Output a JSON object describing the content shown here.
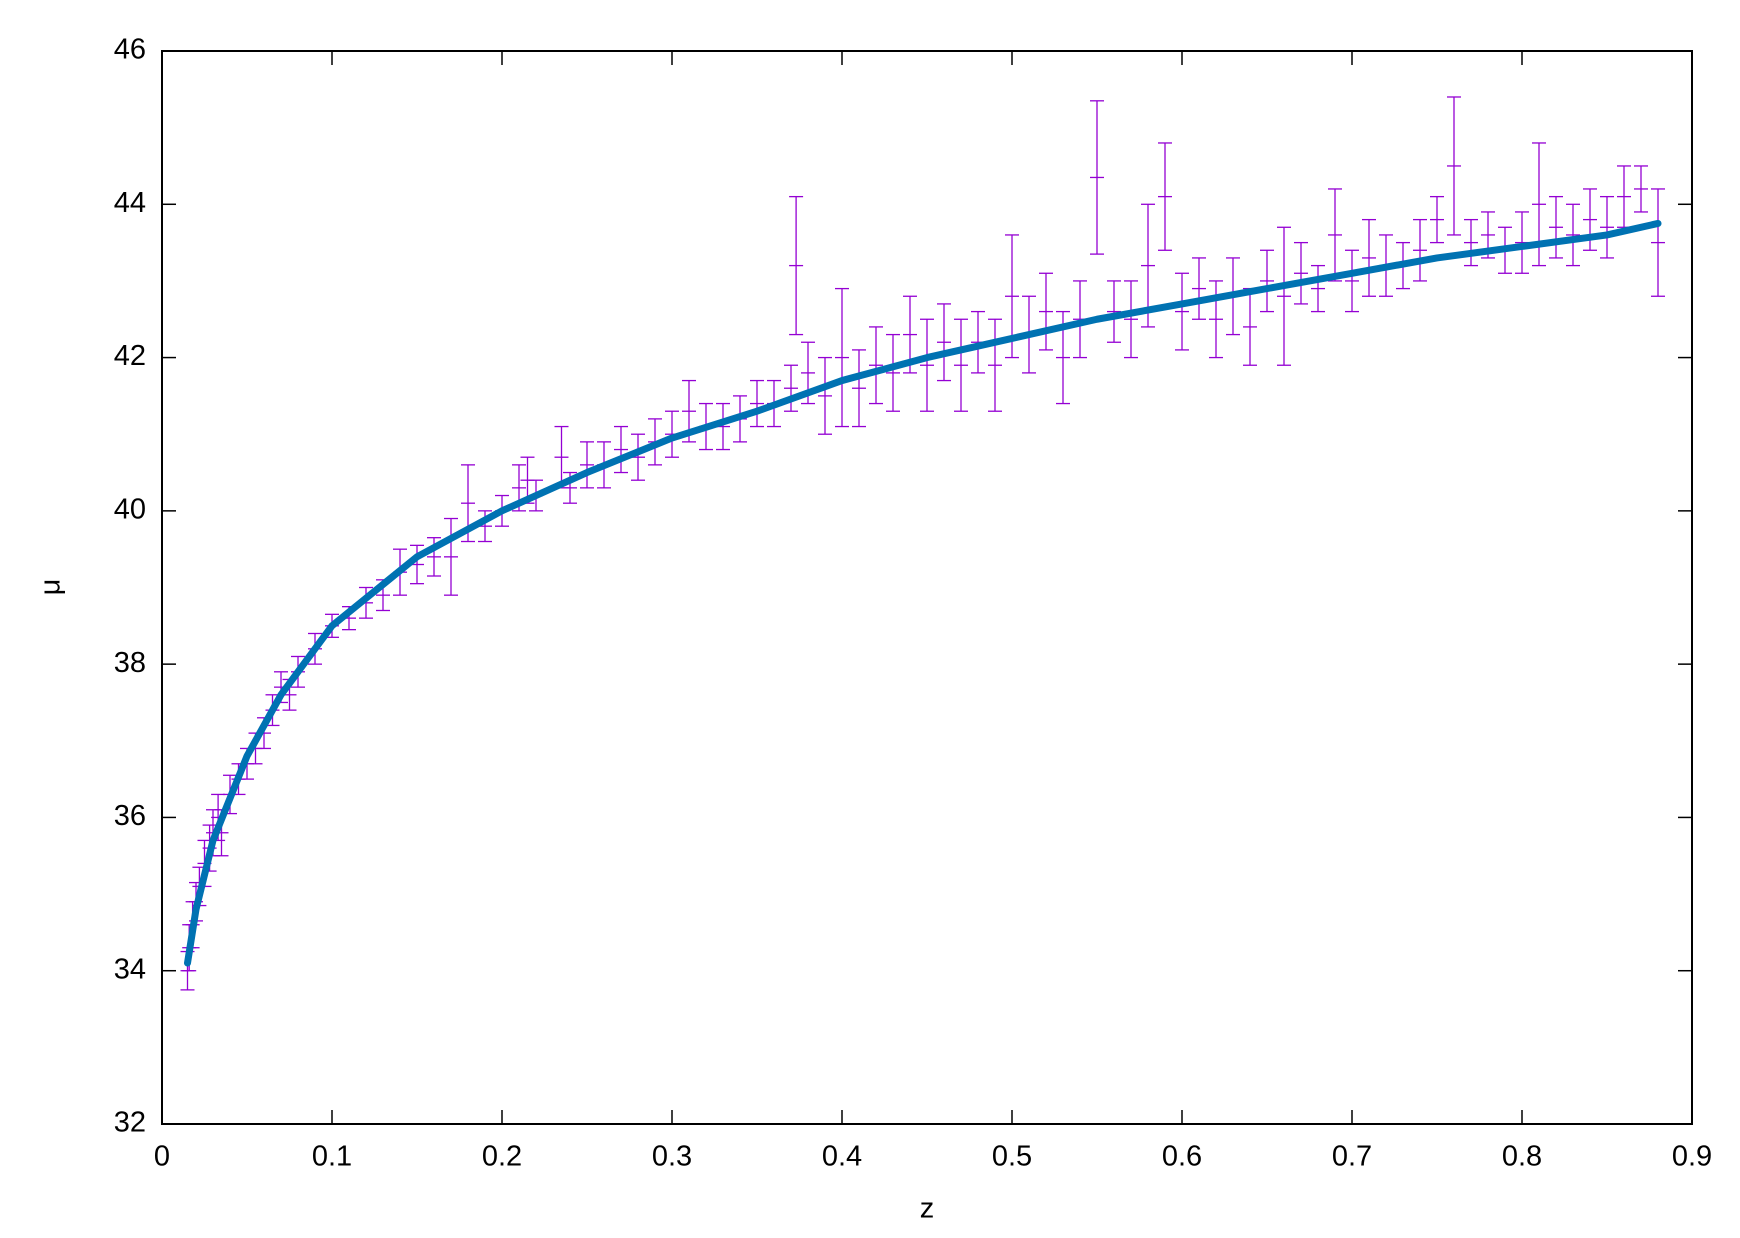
{
  "chart_data": {
    "type": "scatter",
    "x_label": "z",
    "y_label": "μ",
    "xlim": [
      0,
      0.9
    ],
    "xticks": [
      0,
      0.1,
      0.2,
      0.3,
      0.4,
      0.5,
      0.6,
      0.7,
      0.8,
      0.9
    ],
    "ylim": [
      32,
      46
    ],
    "yticks": [
      32,
      34,
      36,
      38,
      40,
      42,
      44,
      46
    ],
    "series": [
      {
        "type": "errorbar",
        "color": "#9400d3",
        "x": [
          0.015,
          0.016,
          0.018,
          0.02,
          0.022,
          0.025,
          0.028,
          0.03,
          0.033,
          0.035,
          0.04,
          0.045,
          0.05,
          0.055,
          0.06,
          0.065,
          0.07,
          0.075,
          0.08,
          0.09,
          0.1,
          0.11,
          0.12,
          0.13,
          0.14,
          0.15,
          0.16,
          0.17,
          0.18,
          0.19,
          0.2,
          0.21,
          0.215,
          0.22,
          0.235,
          0.24,
          0.25,
          0.26,
          0.27,
          0.28,
          0.29,
          0.3,
          0.31,
          0.32,
          0.33,
          0.34,
          0.35,
          0.36,
          0.37,
          0.373,
          0.38,
          0.39,
          0.4,
          0.41,
          0.42,
          0.43,
          0.44,
          0.45,
          0.46,
          0.47,
          0.48,
          0.49,
          0.5,
          0.51,
          0.52,
          0.53,
          0.54,
          0.55,
          0.56,
          0.57,
          0.58,
          0.59,
          0.6,
          0.61,
          0.62,
          0.63,
          0.64,
          0.65,
          0.66,
          0.67,
          0.68,
          0.69,
          0.7,
          0.71,
          0.72,
          0.73,
          0.74,
          0.75,
          0.76,
          0.77,
          0.78,
          0.79,
          0.8,
          0.81,
          0.82,
          0.83,
          0.84,
          0.85,
          0.86,
          0.87,
          0.88
        ],
        "values": [
          34.0,
          34.3,
          34.6,
          34.9,
          35.1,
          35.4,
          35.6,
          35.8,
          36.0,
          35.8,
          36.3,
          36.5,
          36.7,
          36.9,
          37.1,
          37.4,
          37.7,
          37.6,
          37.9,
          38.2,
          38.5,
          38.6,
          38.8,
          38.9,
          39.2,
          39.3,
          39.4,
          39.4,
          40.1,
          39.8,
          40.0,
          40.3,
          40.4,
          40.2,
          40.7,
          40.3,
          40.6,
          40.6,
          40.8,
          40.7,
          40.9,
          41.0,
          41.3,
          41.1,
          41.1,
          41.2,
          41.4,
          41.4,
          41.6,
          43.2,
          41.8,
          41.5,
          42.0,
          41.6,
          41.9,
          41.8,
          42.3,
          41.9,
          42.2,
          41.9,
          42.2,
          41.9,
          42.8,
          42.3,
          42.6,
          42.0,
          42.5,
          44.35,
          42.6,
          42.5,
          43.2,
          44.1,
          42.6,
          42.9,
          42.5,
          42.8,
          42.4,
          43.0,
          42.8,
          43.1,
          42.9,
          43.6,
          43.0,
          43.3,
          43.2,
          43.2,
          43.4,
          43.8,
          44.5,
          43.5,
          43.6,
          43.4,
          43.5,
          44.0,
          43.7,
          43.6,
          43.8,
          43.7,
          44.1,
          44.2,
          43.5
        ],
        "errors": [
          0.25,
          0.3,
          0.3,
          0.25,
          0.25,
          0.3,
          0.3,
          0.3,
          0.3,
          0.3,
          0.25,
          0.2,
          0.2,
          0.2,
          0.2,
          0.2,
          0.2,
          0.2,
          0.2,
          0.2,
          0.15,
          0.15,
          0.2,
          0.2,
          0.3,
          0.25,
          0.25,
          0.5,
          0.5,
          0.2,
          0.2,
          0.3,
          0.3,
          0.2,
          0.4,
          0.2,
          0.3,
          0.3,
          0.3,
          0.3,
          0.3,
          0.3,
          0.4,
          0.3,
          0.3,
          0.3,
          0.3,
          0.3,
          0.3,
          0.9,
          0.4,
          0.5,
          0.9,
          0.5,
          0.5,
          0.5,
          0.5,
          0.6,
          0.5,
          0.6,
          0.4,
          0.6,
          0.8,
          0.5,
          0.5,
          0.6,
          0.5,
          1.0,
          0.4,
          0.5,
          0.8,
          0.7,
          0.5,
          0.4,
          0.5,
          0.5,
          0.5,
          0.4,
          0.9,
          0.4,
          0.3,
          0.6,
          0.4,
          0.5,
          0.4,
          0.3,
          0.4,
          0.3,
          0.9,
          0.3,
          0.3,
          0.3,
          0.4,
          0.8,
          0.4,
          0.4,
          0.4,
          0.4,
          0.4,
          0.3,
          0.7
        ]
      },
      {
        "type": "line",
        "color": "#0072b2",
        "x": [
          0.015,
          0.02,
          0.03,
          0.05,
          0.07,
          0.1,
          0.15,
          0.2,
          0.25,
          0.3,
          0.35,
          0.4,
          0.45,
          0.5,
          0.55,
          0.6,
          0.65,
          0.7,
          0.75,
          0.8,
          0.85,
          0.88
        ],
        "values": [
          34.1,
          34.8,
          35.7,
          36.8,
          37.6,
          38.5,
          39.4,
          40.0,
          40.5,
          40.95,
          41.3,
          41.7,
          42.0,
          42.25,
          42.5,
          42.7,
          42.9,
          43.1,
          43.3,
          43.45,
          43.6,
          43.75
        ]
      }
    ]
  }
}
